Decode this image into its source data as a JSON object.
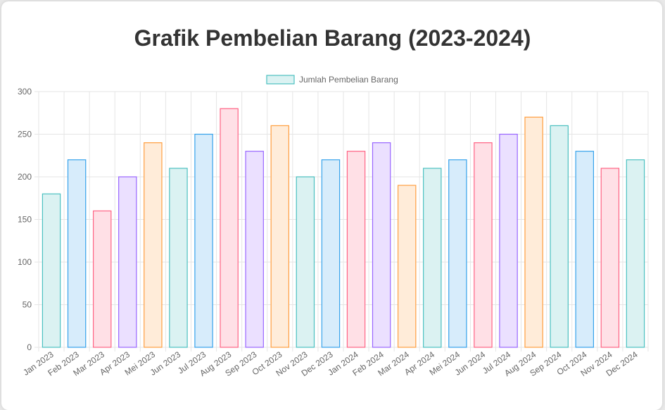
{
  "page": {
    "title": "Grafik Pembelian Barang (2023-2024)"
  },
  "chart_data": {
    "type": "bar",
    "title": "Grafik Pembelian Barang (2023-2024)",
    "xlabel": "",
    "ylabel": "",
    "ylim": [
      0,
      300
    ],
    "yticks": [
      0,
      50,
      100,
      150,
      200,
      250,
      300
    ],
    "grid": true,
    "legend_position": "top",
    "categories": [
      "Jan 2023",
      "Feb 2023",
      "Mar 2023",
      "Apr 2023",
      "Mei 2023",
      "Jun 2023",
      "Jul 2023",
      "Aug 2023",
      "Sep 2023",
      "Oct 2023",
      "Nov 2023",
      "Dec 2023",
      "Jan 2024",
      "Feb 2024",
      "Mar 2024",
      "Apr 2024",
      "Mei 2024",
      "Jun 2024",
      "Jul 2024",
      "Aug 2024",
      "Sep 2024",
      "Oct 2024",
      "Nov 2024",
      "Dec 2024"
    ],
    "series": [
      {
        "name": "Jumlah Pembelian Barang",
        "values": [
          180,
          220,
          160,
          200,
          240,
          210,
          250,
          280,
          230,
          260,
          200,
          220,
          230,
          240,
          190,
          210,
          220,
          240,
          250,
          270,
          260,
          230,
          210,
          220
        ]
      }
    ],
    "palette": [
      {
        "fill": "#dbf2f2",
        "stroke": "#4bc0c0"
      },
      {
        "fill": "#d7ecfb",
        "stroke": "#36a2eb"
      },
      {
        "fill": "#ffe0e6",
        "stroke": "#ff6384"
      },
      {
        "fill": "#ebe0ff",
        "stroke": "#9966ff"
      },
      {
        "fill": "#ffecd9",
        "stroke": "#ff9f40"
      }
    ],
    "palette_order": [
      0,
      1,
      2,
      3,
      4,
      0,
      1,
      2,
      3,
      4,
      0,
      1,
      2,
      3,
      4,
      0,
      1,
      2,
      3,
      4,
      0,
      1,
      2,
      0
    ]
  }
}
